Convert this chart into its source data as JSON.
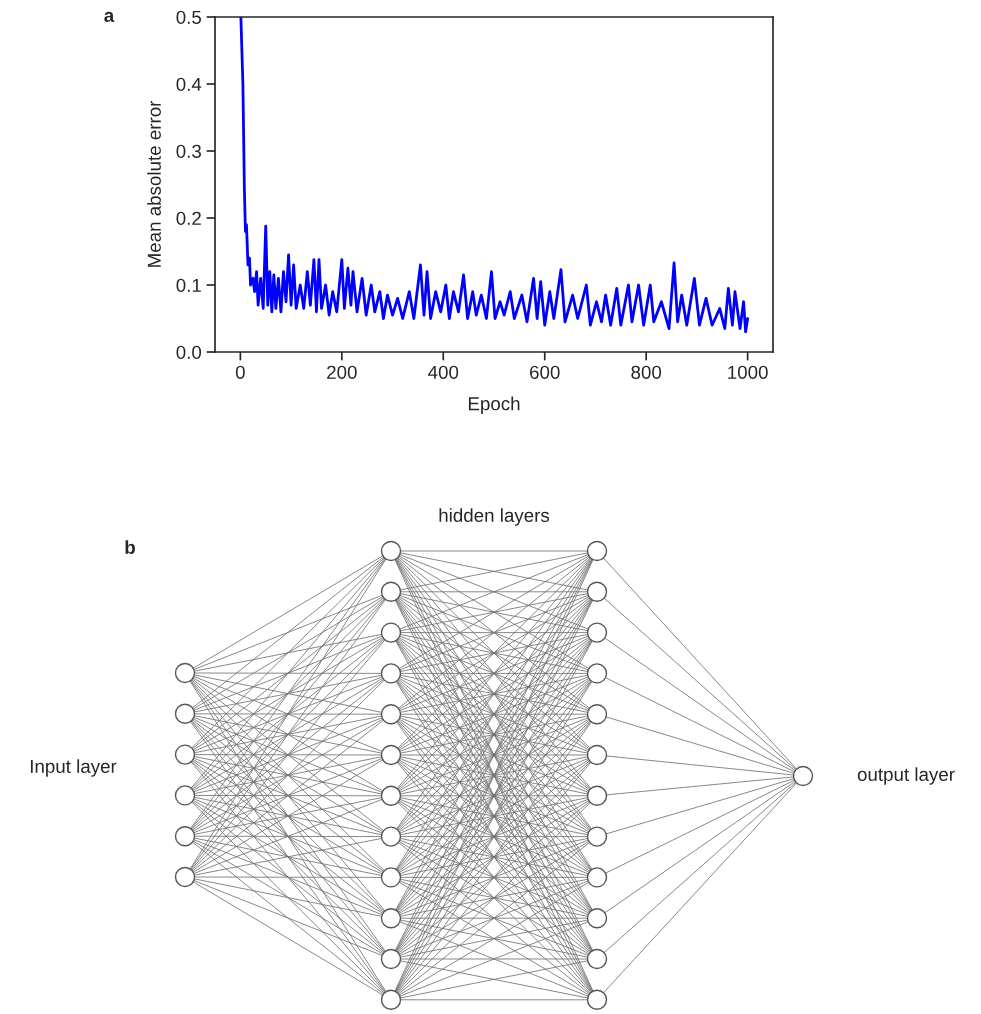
{
  "chart_data": [
    {
      "type": "line",
      "xlabel": "Epoch",
      "ylabel": "Mean absolute error",
      "annotations": [
        "a"
      ],
      "xlim": [
        -50,
        1050
      ],
      "ylim": [
        0,
        0.5
      ],
      "xticks": [
        0,
        200,
        400,
        600,
        800,
        1000
      ],
      "yticks": [
        {
          "value": 0,
          "label": "0.0"
        },
        0.1,
        0.2,
        0.3,
        0.4,
        0.5
      ],
      "grid": false,
      "legend": false,
      "marker": "none",
      "line_style": "solid",
      "series": [
        {
          "color": "#0000ff",
          "x": [
            1,
            5,
            8,
            10,
            12,
            15,
            18,
            20,
            25,
            28,
            32,
            35,
            40,
            45,
            50,
            54,
            58,
            62,
            66,
            70,
            75,
            80,
            85,
            90,
            95,
            100,
            105,
            110,
            118,
            125,
            132,
            138,
            145,
            150,
            155,
            160,
            168,
            175,
            182,
            190,
            200,
            205,
            212,
            218,
            222,
            230,
            240,
            248,
            258,
            265,
            275,
            282,
            290,
            300,
            310,
            320,
            333,
            342,
            355,
            362,
            368,
            375,
            385,
            395,
            405,
            412,
            420,
            430,
            440,
            448,
            458,
            465,
            475,
            485,
            495,
            502,
            512,
            520,
            532,
            540,
            555,
            565,
            578,
            585,
            592,
            600,
            610,
            618,
            632,
            640,
            655,
            665,
            682,
            690,
            702,
            712,
            720,
            730,
            742,
            750,
            765,
            772,
            785,
            795,
            808,
            815,
            830,
            845,
            855,
            862,
            870,
            880,
            895,
            905,
            918,
            930,
            945,
            955,
            962,
            970,
            975,
            985,
            992,
            996,
            1000
          ],
          "values": [
            0.5,
            0.4,
            0.24,
            0.18,
            0.19,
            0.13,
            0.14,
            0.1,
            0.11,
            0.09,
            0.12,
            0.07,
            0.11,
            0.065,
            0.188,
            0.07,
            0.12,
            0.06,
            0.115,
            0.065,
            0.11,
            0.06,
            0.12,
            0.075,
            0.145,
            0.07,
            0.13,
            0.065,
            0.1,
            0.065,
            0.12,
            0.07,
            0.138,
            0.06,
            0.138,
            0.065,
            0.1,
            0.055,
            0.09,
            0.06,
            0.138,
            0.065,
            0.125,
            0.07,
            0.12,
            0.06,
            0.11,
            0.055,
            0.1,
            0.06,
            0.09,
            0.05,
            0.085,
            0.055,
            0.08,
            0.05,
            0.09,
            0.05,
            0.13,
            0.055,
            0.12,
            0.05,
            0.09,
            0.06,
            0.1,
            0.05,
            0.09,
            0.06,
            0.115,
            0.05,
            0.09,
            0.055,
            0.085,
            0.05,
            0.12,
            0.05,
            0.075,
            0.055,
            0.09,
            0.05,
            0.085,
            0.045,
            0.11,
            0.05,
            0.105,
            0.04,
            0.09,
            0.05,
            0.123,
            0.045,
            0.085,
            0.05,
            0.1,
            0.04,
            0.075,
            0.045,
            0.085,
            0.04,
            0.095,
            0.04,
            0.1,
            0.045,
            0.1,
            0.04,
            0.1,
            0.045,
            0.075,
            0.035,
            0.133,
            0.045,
            0.085,
            0.04,
            0.11,
            0.04,
            0.08,
            0.04,
            0.065,
            0.035,
            0.095,
            0.04,
            0.09,
            0.035,
            0.075,
            0.03,
            0.05
          ]
        }
      ]
    },
    {
      "type": "other",
      "annotations": [
        "b",
        "hidden layers",
        "Input layer",
        "output layer"
      ]
    }
  ]
}
